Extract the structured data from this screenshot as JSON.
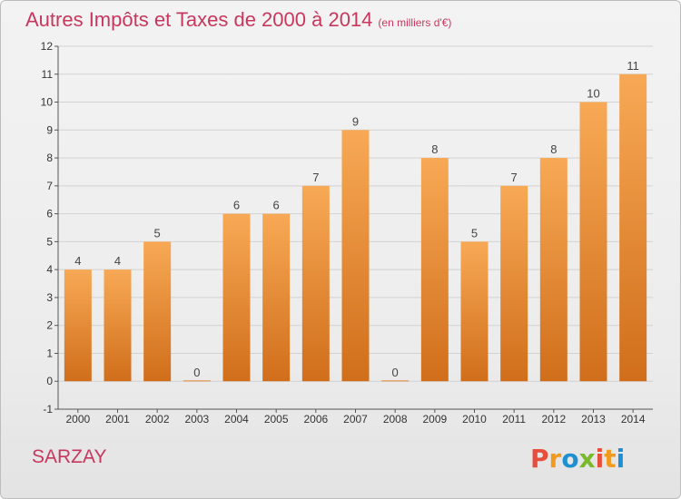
{
  "header": {
    "title": "Autres Impôts et Taxes de 2000 à 2014",
    "unit": "(en milliers d'€)"
  },
  "footer": {
    "place": "SARZAY",
    "brand": "Proxiti"
  },
  "colors": {
    "title": "#c8375e",
    "bar_light": "#f8a955",
    "bar_dark": "#d06e1b",
    "brand_letters": [
      "#e84e3c",
      "#f29a1e",
      "#1f8fd1",
      "#7ab929",
      "#e84e3c",
      "#f29a1e",
      "#1f8fd1"
    ]
  },
  "chart_data": {
    "type": "bar",
    "title": "Autres Impôts et Taxes de 2000 à 2014",
    "categories": [
      "2000",
      "2001",
      "2002",
      "2003",
      "2004",
      "2005",
      "2006",
      "2007",
      "2008",
      "2009",
      "2010",
      "2011",
      "2012",
      "2013",
      "2014"
    ],
    "values": [
      4,
      4,
      5,
      0,
      6,
      6,
      7,
      9,
      0,
      8,
      5,
      7,
      8,
      10,
      11
    ],
    "data_labels": [
      "4",
      "4",
      "5",
      "0",
      "6",
      "6",
      "7",
      "9",
      "0",
      "8",
      "5",
      "7",
      "8",
      "10",
      "11"
    ],
    "ylim": [
      -1,
      12
    ],
    "yticks": [
      -1,
      0,
      1,
      2,
      3,
      4,
      5,
      6,
      7,
      8,
      9,
      10,
      11,
      12
    ],
    "ytick_labels": [
      "-1",
      "0",
      "1",
      "2",
      "3",
      "4",
      "5",
      "6",
      "7",
      "8",
      "9",
      "10",
      "11",
      "12"
    ],
    "grid": "horizontal",
    "legend": "none"
  }
}
